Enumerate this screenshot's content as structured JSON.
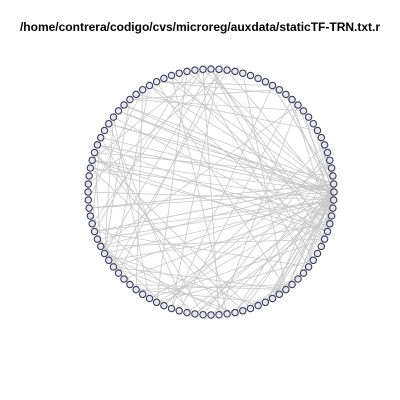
{
  "title": "/home/contrera/codigo/cvs/microreg/auxdata/staticTF-TRN.txt.r",
  "network": {
    "layout": "circle",
    "node_count": 96,
    "edge_count": 150,
    "node_color": "#3a3a5a",
    "node_fill": "#e8e8f0",
    "edge_color": "#c8c8c8"
  }
}
